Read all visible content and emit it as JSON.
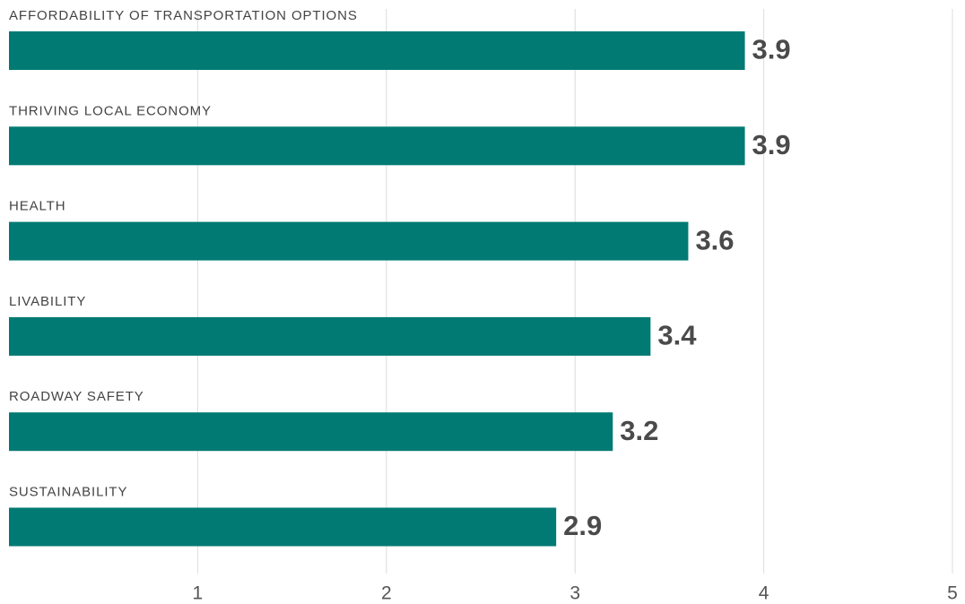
{
  "chart_data": {
    "type": "hbar",
    "categories": [
      "AFFORDABILITY OF TRANSPORTATION OPTIONS",
      "THRIVING LOCAL ECONOMY",
      "HEALTH",
      "LIVABILITY",
      "ROADWAY SAFETY",
      "SUSTAINABILITY"
    ],
    "values": [
      3.9,
      3.9,
      3.6,
      3.4,
      3.2,
      2.9
    ],
    "color": "#007a73",
    "xlim": [
      0,
      5
    ],
    "xticks": [
      1,
      2,
      3,
      4,
      5
    ],
    "grid": true
  }
}
